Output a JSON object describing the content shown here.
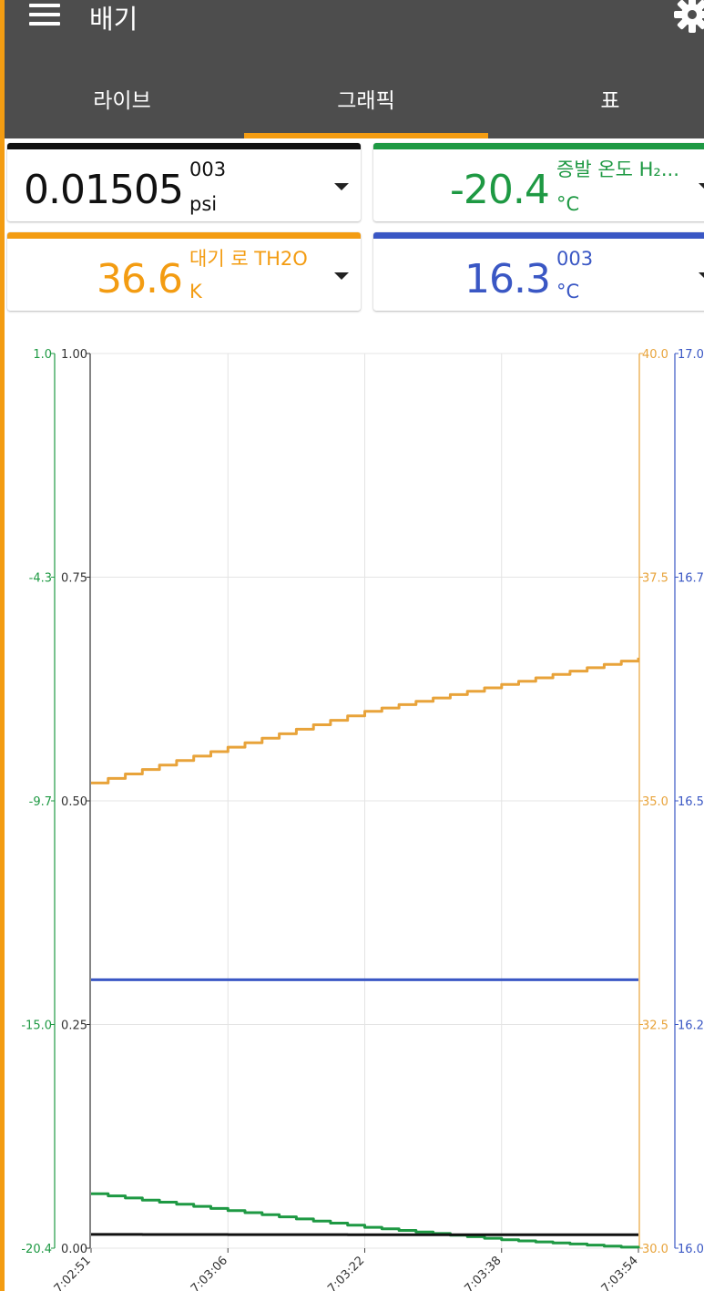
{
  "app": {
    "title": "배기"
  },
  "tabs": [
    {
      "label": "라이브",
      "active": false
    },
    {
      "label": "그래픽",
      "active": true
    },
    {
      "label": "표",
      "active": false
    }
  ],
  "cards": [
    {
      "value": "0.01505",
      "label": "003",
      "unit": "psi",
      "color": "#111111"
    },
    {
      "value": "-20.4",
      "label": "증발 온도 H₂...",
      "unit": "°C",
      "color": "#1e9943"
    },
    {
      "value": "36.6",
      "label": "대기 로 TH2O",
      "unit": "K",
      "color": "#f39c12"
    },
    {
      "value": "16.3",
      "label": "003",
      "unit": "°C",
      "color": "#3a57c4"
    }
  ],
  "colors": {
    "accent": "#f39c12",
    "appbar": "#4d4d4d",
    "black": "#111111",
    "green": "#1e9943",
    "orange": "#e8a33a",
    "blue": "#3a57c4"
  },
  "icons": {
    "menu": "hamburger-menu-icon",
    "settings": "gear-icon",
    "dropdown": "dropdown-arrow-icon"
  },
  "chart_data": {
    "type": "line",
    "x": [
      "07:02:51",
      "07:03:06",
      "07:03:22",
      "07:03:38",
      "07:03:54"
    ],
    "x_tick_labels": [
      "7:02:51",
      "7:03:06",
      "7:03:22",
      "7:03:38",
      "7:03:54"
    ],
    "axes": [
      {
        "id": "green",
        "side": "left",
        "color": "#1e9943",
        "ticks": [
          "1.0",
          "-4.3",
          "-9.7",
          "-15.0",
          "-20.4"
        ],
        "range": [
          -20.4,
          1.0
        ]
      },
      {
        "id": "black",
        "side": "left",
        "color": "#333333",
        "ticks": [
          "1.00",
          "0.75",
          "0.50",
          "0.25",
          "0.00"
        ],
        "range": [
          0,
          1.0
        ]
      },
      {
        "id": "orange",
        "side": "right",
        "color": "#e8a33a",
        "ticks": [
          "40.0",
          "37.5",
          "35.0",
          "32.5",
          "30.0"
        ],
        "range": [
          30.0,
          40.0
        ]
      },
      {
        "id": "blue",
        "side": "right",
        "color": "#3a57c4",
        "ticks": [
          "17.0",
          "16.7",
          "16.5",
          "16.2",
          "16.0"
        ],
        "range": [
          16.0,
          17.0
        ]
      }
    ],
    "series": [
      {
        "axis": "orange",
        "color": "#e8a33a",
        "x": [
          "07:02:51",
          "07:03:06",
          "07:03:22",
          "07:03:38",
          "07:03:54"
        ],
        "values": [
          35.2,
          35.6,
          36.0,
          36.3,
          36.6
        ]
      },
      {
        "axis": "blue",
        "color": "#3a57c4",
        "x": [
          "07:02:51",
          "07:03:06",
          "07:03:22",
          "07:03:38",
          "07:03:54"
        ],
        "values": [
          16.3,
          16.3,
          16.3,
          16.3,
          16.3
        ]
      },
      {
        "axis": "green",
        "color": "#1e9943",
        "x": [
          "07:02:51",
          "07:03:06",
          "07:03:22",
          "07:03:38",
          "07:03:54"
        ],
        "values": [
          -19.1,
          -19.5,
          -19.9,
          -20.2,
          -20.4
        ]
      },
      {
        "axis": "black",
        "color": "#111111",
        "x": [
          "07:02:51",
          "07:03:06",
          "07:03:22",
          "07:03:38",
          "07:03:54"
        ],
        "values": [
          0.0154,
          0.0152,
          0.0151,
          0.0151,
          0.01505
        ]
      }
    ],
    "grid": true,
    "legend": "none"
  }
}
